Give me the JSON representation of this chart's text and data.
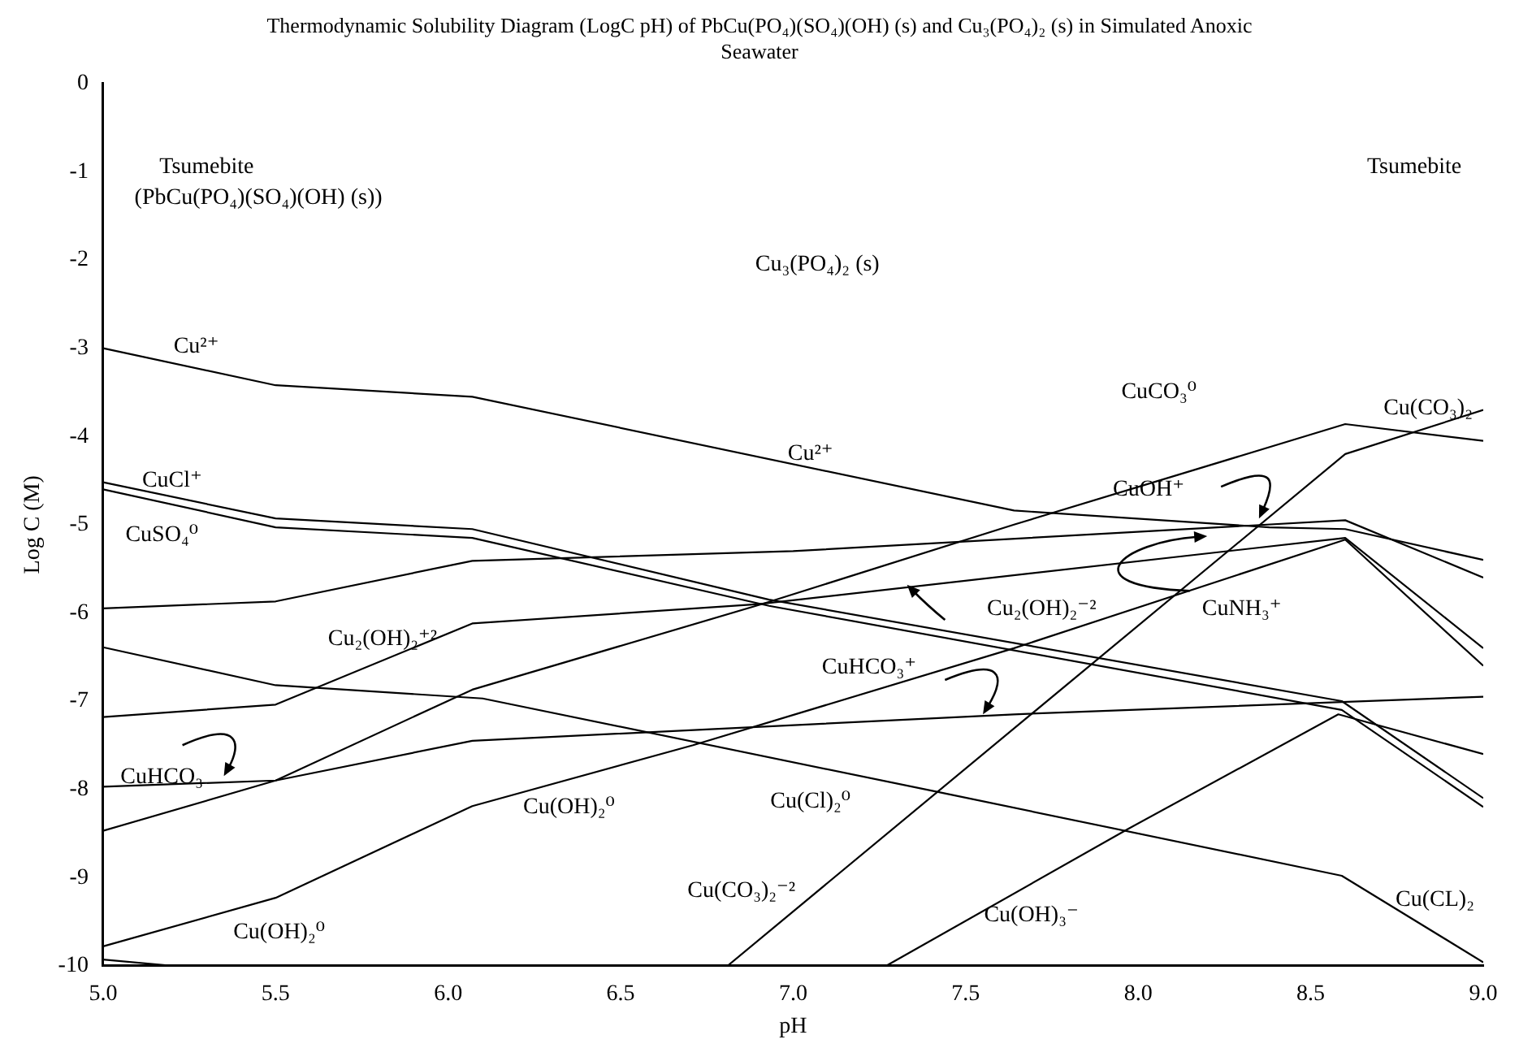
{
  "chart_data": {
    "type": "line",
    "title": "Thermodynamic Solubility Diagram (LogC pH) of PbCu(PO₄)(SO₄)(OH) (s) and Cu₃(PO₄)₂ (s) in Simulated Anoxic Seawater",
    "xlabel": "pH",
    "ylabel": "Log C (M)",
    "xlim": [
      5,
      9
    ],
    "ylim": [
      -10,
      0
    ],
    "xticks": [
      {
        "value": 5,
        "label": "5.0"
      },
      {
        "value": 5.5,
        "label": "5.5"
      },
      {
        "value": 6,
        "label": "6.0"
      },
      {
        "value": 6.5,
        "label": "6.5"
      },
      {
        "value": 7,
        "label": "7.0"
      },
      {
        "value": 7.5,
        "label": "7.5"
      },
      {
        "value": 8,
        "label": "8.0"
      },
      {
        "value": 8.5,
        "label": "8.5"
      },
      {
        "value": 9,
        "label": "9.0"
      }
    ],
    "yticks": [
      0,
      -1,
      -2,
      -3,
      -4,
      -5,
      -6,
      -7,
      -8,
      -9,
      -10
    ],
    "series": [
      {
        "color": "#000000",
        "x": [
          5,
          5.5,
          6.07,
          7.64,
          8.38,
          8.6,
          9
        ],
        "values": [
          -3,
          -3.42,
          -3.55,
          -4.84,
          -5.03,
          -5.05,
          -5.4
        ]
      },
      {
        "color": "#000000",
        "x": [
          5,
          5.5,
          6.07,
          6.93,
          8.59,
          9
        ],
        "values": [
          -4.52,
          -4.93,
          -5.05,
          -5.85,
          -7,
          -8.1
        ]
      },
      {
        "color": "#000000",
        "x": [
          5,
          5.5,
          6.07,
          6.93,
          8.59,
          9
        ],
        "values": [
          -4.6,
          -5.03,
          -5.15,
          -5.92,
          -7.1,
          -8.2
        ]
      },
      {
        "color": "#000000",
        "x": [
          5,
          5.5,
          6.07,
          7,
          8.6,
          9
        ],
        "values": [
          -5.95,
          -5.87,
          -5.41,
          -5.3,
          -4.95,
          -5.6
        ]
      },
      {
        "color": "#000000",
        "x": [
          5,
          5.5,
          6.07,
          6.9,
          8.6,
          9
        ],
        "values": [
          -7.18,
          -7.04,
          -6.12,
          -5.9,
          -5.15,
          -6.4
        ]
      },
      {
        "color": "#000000",
        "x": [
          5,
          5.5,
          6.1,
          7.42,
          8.59,
          9
        ],
        "values": [
          -6.39,
          -6.82,
          -6.97,
          -8.03,
          -8.98,
          -9.96
        ]
      },
      {
        "color": "#000000",
        "x": [
          5,
          5.5,
          6.07,
          7.64,
          9
        ],
        "values": [
          -7.97,
          -7.9,
          -7.45,
          -7.15,
          -6.95
        ]
      },
      {
        "color": "#000000",
        "x": [
          5,
          5.5,
          6.07,
          6.91,
          7.64,
          8.6,
          9
        ],
        "values": [
          -8.47,
          -7.9,
          -6.87,
          -5.9,
          -5,
          -3.86,
          -4.05
        ]
      },
      {
        "color": "#000000",
        "x": [
          5,
          5.5,
          6.07,
          6.71,
          7.64,
          8.6,
          9
        ],
        "values": [
          -9.78,
          -9.23,
          -8.19,
          -7.5,
          -6.4,
          -5.17,
          -6.6
        ]
      },
      {
        "color": "#000000",
        "x": [
          6.81,
          7.64,
          8.6,
          9
        ],
        "values": [
          -10,
          -7.31,
          -4.2,
          -3.7
        ]
      },
      {
        "color": "#000000",
        "x": [
          7.27,
          7.97,
          8.58,
          9
        ],
        "values": [
          -10,
          -8.45,
          -7.15,
          -7.6
        ]
      },
      {
        "color": "#000000",
        "x": [
          5,
          5.2
        ],
        "values": [
          -9.93,
          -10
        ]
      }
    ],
    "annotations": [
      "Tsumebite",
      "(PbCu(PO₄)(SO₄)(OH) (s))",
      "Cu₃(PO₄)₂ (s)",
      "Tsumebite",
      "Cu²⁺",
      "Cu²⁺",
      "CuCO₃⁰",
      "Cu(CO₃)₂",
      "CuCl⁺",
      "CuSO₄⁰",
      "CuOH⁺",
      "Cu₂(OH)₂⁻²",
      "CuNH₃⁺",
      "Cu₂(OH)₂⁺²",
      "CuHCO₃⁺",
      "CuHCO₃",
      "Cu(OH)₂⁰",
      "Cu(Cl)₂⁰",
      "Cu(CO₃)₂⁻²",
      "Cu(OH)₃⁻",
      "Cu(CL)₂",
      "Cu(OH)₂⁰"
    ]
  }
}
